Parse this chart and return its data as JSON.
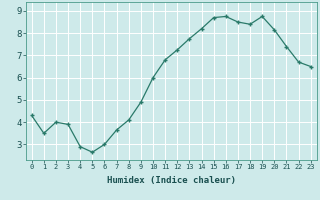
{
  "x": [
    0,
    1,
    2,
    3,
    4,
    5,
    6,
    7,
    8,
    9,
    10,
    11,
    12,
    13,
    14,
    15,
    16,
    17,
    18,
    19,
    20,
    21,
    22,
    23
  ],
  "y": [
    4.3,
    3.5,
    4.0,
    3.9,
    2.9,
    2.65,
    3.0,
    3.65,
    4.1,
    4.9,
    6.0,
    6.8,
    7.25,
    7.75,
    8.2,
    8.7,
    8.75,
    8.5,
    8.4,
    8.75,
    8.15,
    7.4,
    6.7,
    6.5
  ],
  "xlabel": "Humidex (Indice chaleur)",
  "xlim": [
    -0.5,
    23.5
  ],
  "ylim": [
    2.3,
    9.4
  ],
  "yticks": [
    3,
    4,
    5,
    6,
    7,
    8,
    9
  ],
  "line_color": "#2a7a6a",
  "marker_color": "#2a7a6a",
  "bg_color": "#ceeaea",
  "grid_color": "#ffffff",
  "axes_bg": "#ceeaea",
  "xlabel_color": "#1a5050",
  "tick_color": "#1a5050",
  "spine_color": "#4a9a8a"
}
